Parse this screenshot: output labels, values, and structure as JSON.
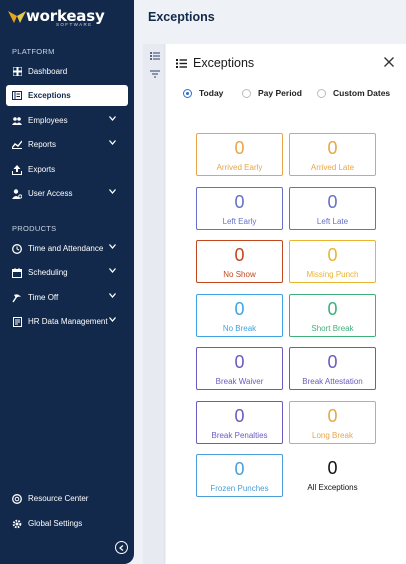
{
  "app": {
    "logo_text": "workeasy",
    "logo_sub": "SOFTWARE",
    "brand_colors": {
      "logo_wing_left": "#e8a21b",
      "logo_wing_right": "#e5c94c",
      "sidebar": "#13294b"
    }
  },
  "sidebar": {
    "platform_label": "PLATFORM",
    "platform_items": [
      {
        "label": "Dashboard",
        "icon": "dashboard-icon",
        "active": false,
        "expandable": false
      },
      {
        "label": "Exceptions",
        "icon": "exceptions-icon",
        "active": true,
        "expandable": false
      },
      {
        "label": "Employees",
        "icon": "employees-icon",
        "active": false,
        "expandable": true
      },
      {
        "label": "Reports",
        "icon": "reports-icon",
        "active": false,
        "expandable": true
      },
      {
        "label": "Exports",
        "icon": "exports-icon",
        "active": false,
        "expandable": false
      },
      {
        "label": "User Access",
        "icon": "user-access-icon",
        "active": false,
        "expandable": true
      }
    ],
    "products_label": "PRODUCTS",
    "product_items": [
      {
        "label": "Time and Attendance",
        "icon": "clock-icon",
        "expandable": true
      },
      {
        "label": "Scheduling",
        "icon": "calendar-icon",
        "expandable": true
      },
      {
        "label": "Time Off",
        "icon": "time-off-icon",
        "expandable": true
      },
      {
        "label": "HR Data Management",
        "icon": "hr-data-icon",
        "expandable": true
      }
    ],
    "bottom_items": [
      {
        "label": "Resource Center",
        "icon": "resource-center-icon"
      },
      {
        "label": "Global Settings",
        "icon": "settings-gear-icon"
      }
    ]
  },
  "main": {
    "title": "Exceptions"
  },
  "panel": {
    "title": "Exceptions",
    "period_options": [
      {
        "label": "Today",
        "selected": true
      },
      {
        "label": "Pay Period",
        "selected": false
      },
      {
        "label": "Custom Dates",
        "selected": false
      }
    ],
    "cards": [
      {
        "label": "Arrived Early",
        "count": "0",
        "color": "#e8a64a"
      },
      {
        "label": "Arrived Late",
        "count": "0",
        "color": "#e8a64a"
      },
      {
        "label": "Left Early",
        "count": "0",
        "color": "#6670c8"
      },
      {
        "label": "Left Late",
        "count": "0",
        "color": "#6670c8"
      },
      {
        "label": "No Show",
        "count": "0",
        "color": "#c3461c"
      },
      {
        "label": "Missing Punch",
        "count": "0",
        "color": "#e9b430"
      },
      {
        "label": "No Break",
        "count": "0",
        "color": "#3ea4e5"
      },
      {
        "label": "Short Break",
        "count": "0",
        "color": "#3fb07a"
      },
      {
        "label": "Break Waiver",
        "count": "0",
        "color": "#6a5bc0"
      },
      {
        "label": "Break Attestation",
        "count": "0",
        "color": "#6a5bc0"
      },
      {
        "label": "Break Penalties",
        "count": "0",
        "color": "#6a5bc0"
      },
      {
        "label": "Long Break",
        "count": "0",
        "color": "#e8a64a"
      },
      {
        "label": "Frozen Punches",
        "count": "0",
        "color": "#4a9fd8"
      },
      {
        "label": "All Exceptions",
        "count": "0",
        "color": "#111111"
      }
    ]
  }
}
